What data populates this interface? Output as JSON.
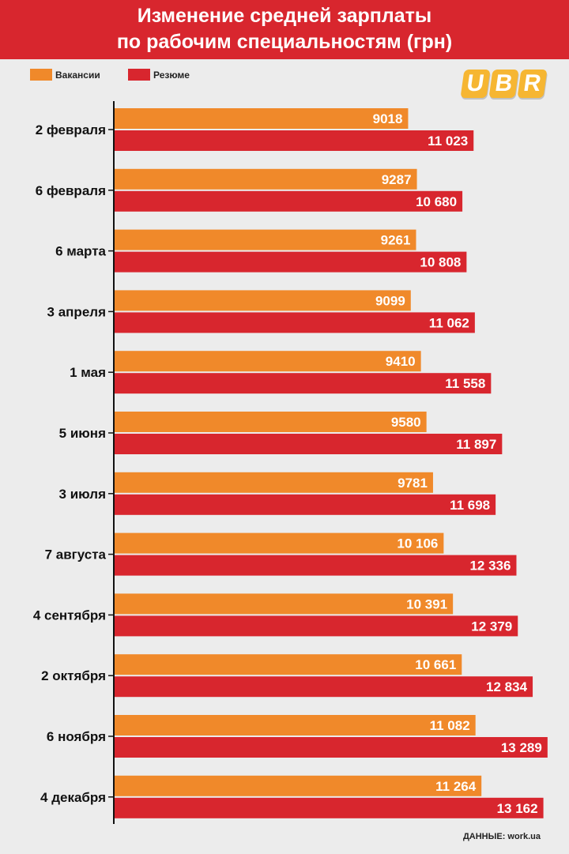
{
  "header": {
    "title_line1": "Изменение средней зарплаты",
    "title_line2": "по рабочим специальностям (грн)"
  },
  "legend": {
    "items": [
      {
        "label": "Вакансии",
        "color": "#f0892a"
      },
      {
        "label": "Резюме",
        "color": "#d8262e"
      }
    ]
  },
  "logo": {
    "letters": [
      "U",
      "B",
      "R"
    ],
    "color": "#f6b632"
  },
  "colors": {
    "vacancies": "#f0892a",
    "resumes": "#d8262e",
    "axis": "#111111"
  },
  "chart_data": {
    "type": "bar",
    "orientation": "horizontal",
    "title": "Изменение средней зарплаты по рабочим специальностям (грн)",
    "categories": [
      "2 февраля",
      "6 февраля",
      "6 марта",
      "3 апреля",
      "1 мая",
      "5 июня",
      "3 июля",
      "7 августа",
      "4 сентября",
      "2 октября",
      "6 ноября",
      "4 декабря"
    ],
    "series": [
      {
        "name": "Вакансии",
        "values": [
          9018,
          9287,
          9261,
          9099,
          9410,
          9580,
          9781,
          10106,
          10391,
          10661,
          11082,
          11264
        ],
        "labels": [
          "9018",
          "9287",
          "9261",
          "9099",
          "9410",
          "9580",
          "9781",
          "10 106",
          "10 391",
          "10 661",
          "11 082",
          "11 264"
        ]
      },
      {
        "name": "Резюме",
        "values": [
          11023,
          10680,
          10808,
          11062,
          11558,
          11897,
          11698,
          12336,
          12379,
          12834,
          13289,
          13162
        ],
        "labels": [
          "11 023",
          "10 680",
          "10 808",
          "11 062",
          "11 558",
          "11 897",
          "11 698",
          "12 336",
          "12 379",
          "12 834",
          "13 289",
          "13 162"
        ]
      }
    ],
    "legend_position": "top-left",
    "grid": false
  },
  "footer": {
    "source": "ДАННЫЕ: work.ua"
  }
}
